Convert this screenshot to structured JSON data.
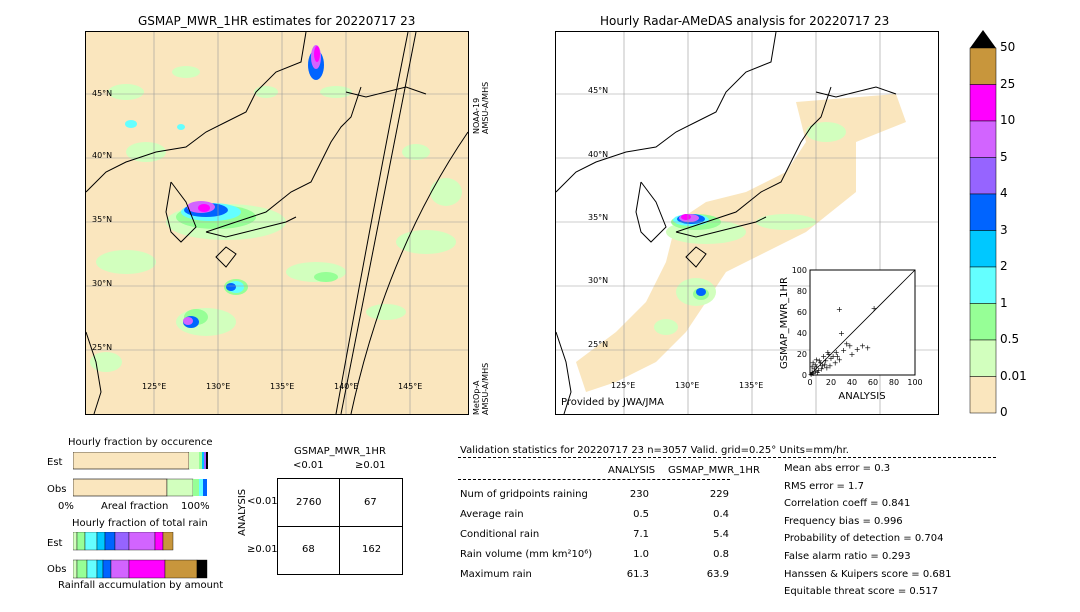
{
  "left_panel": {
    "title": "GSMAP_MWR_1HR estimates for 20220717 23",
    "lat_labels": [
      "45°N",
      "40°N",
      "35°N",
      "30°N",
      "25°N"
    ],
    "lon_labels": [
      "125°E",
      "130°E",
      "135°E",
      "140°E",
      "145°E"
    ],
    "sat_label_1": "NOAA-19\nAMSU-A/MHS",
    "sat_label_1a": "NOAA-19",
    "sat_label_1b": "AMSU-A/MHS",
    "sat_label_2a": "MetOp-A",
    "sat_label_2b": "AMSU-A/MHS"
  },
  "right_panel": {
    "title": "Hourly Radar-AMeDAS analysis for 20220717 23",
    "lat_labels": [
      "45°N",
      "40°N",
      "35°N",
      "30°N",
      "25°N"
    ],
    "lon_labels": [
      "125°E",
      "130°E",
      "135°E"
    ],
    "credit": "Provided by JWA/JMA"
  },
  "colorbar": {
    "labels": [
      "50",
      "25",
      "10",
      "5",
      "4",
      "3",
      "2",
      "1",
      "0.5",
      "0.01",
      "0"
    ],
    "colors": [
      "#c8963c",
      "#ff00ff",
      "#d264ff",
      "#9664ff",
      "#0064ff",
      "#00c8ff",
      "#64ffff",
      "#96ff96",
      "#d2ffbe",
      "#fae6be"
    ]
  },
  "fraction_charts": {
    "occurrence_title": "Hourly fraction by occurence",
    "total_title": "Hourly fraction of total rain",
    "est_label": "Est",
    "obs_label": "Obs",
    "axis_left": "0%",
    "axis_mid": "Areal fraction",
    "axis_right": "100%",
    "footer": "Rainfall accumulation by amount"
  },
  "contingency": {
    "header": "GSMAP_MWR_1HR",
    "col1": "<0.01",
    "col2": "≥0.01",
    "side_label": "ANALYSIS",
    "row1": "<0.01",
    "row2": "≥0.01",
    "cells": [
      "2760",
      "67",
      "68",
      "162"
    ]
  },
  "validation": {
    "header": "Validation statistics for 20220717 23  n=3057 Valid. grid=0.25° Units=mm/hr.",
    "col_analysis": "ANALYSIS",
    "col_gsmap": "GSMAP_MWR_1HR",
    "rows": [
      {
        "label": "Num of gridpoints raining",
        "analysis": "230",
        "gsmap": "229"
      },
      {
        "label": "Average rain",
        "analysis": "0.5",
        "gsmap": "0.4"
      },
      {
        "label": "Conditional rain",
        "analysis": "7.1",
        "gsmap": "5.4"
      },
      {
        "label": "Rain volume (mm km²10⁶)",
        "analysis": "1.0",
        "gsmap": "0.8"
      },
      {
        "label": "Maximum rain",
        "analysis": "61.3",
        "gsmap": "63.9"
      }
    ],
    "scores": [
      "Mean abs error =    0.3",
      "RMS error =    1.7",
      "Correlation coeff =  0.841",
      "Frequency bias =  0.996",
      "Probability of detection =  0.704",
      "False alarm ratio =  0.293",
      "Hanssen & Kuipers score =  0.681",
      "Equitable threat score =  0.517"
    ]
  },
  "chart_data": {
    "type": "scatter",
    "xlabel": "ANALYSIS",
    "ylabel": "GSMAP_MWR_1HR",
    "xlim": [
      0,
      100
    ],
    "ylim": [
      0,
      100
    ],
    "ticks": [
      "0",
      "20",
      "40",
      "60",
      "80",
      "100"
    ],
    "points": [
      [
        1,
        1
      ],
      [
        2,
        3
      ],
      [
        3,
        2
      ],
      [
        4,
        6
      ],
      [
        5,
        4
      ],
      [
        6,
        8
      ],
      [
        8,
        5
      ],
      [
        10,
        12
      ],
      [
        12,
        9
      ],
      [
        15,
        14
      ],
      [
        18,
        20
      ],
      [
        20,
        16
      ],
      [
        22,
        18
      ],
      [
        25,
        22
      ],
      [
        28,
        15
      ],
      [
        30,
        40
      ],
      [
        32,
        24
      ],
      [
        35,
        30
      ],
      [
        38,
        28
      ],
      [
        40,
        20
      ],
      [
        45,
        25
      ],
      [
        50,
        28
      ],
      [
        55,
        26
      ],
      [
        28,
        63
      ],
      [
        61,
        64
      ],
      [
        2,
        8
      ],
      [
        5,
        10
      ],
      [
        7,
        3
      ],
      [
        9,
        14
      ],
      [
        11,
        6
      ],
      [
        14,
        10
      ],
      [
        16,
        7
      ],
      [
        3,
        12
      ],
      [
        6,
        15
      ],
      [
        13,
        18
      ],
      [
        24,
        12
      ],
      [
        17,
        22
      ],
      [
        19,
        9
      ],
      [
        26,
        18
      ]
    ]
  }
}
